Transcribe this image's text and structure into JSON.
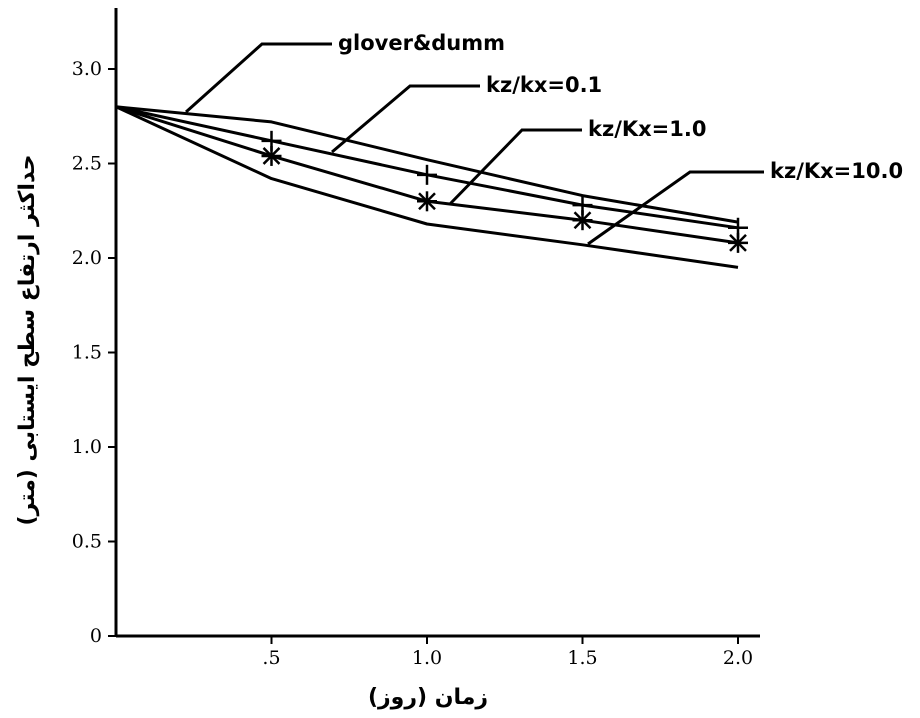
{
  "chart_data": {
    "type": "line",
    "xlabel": "زمان (روز)",
    "ylabel": "حداکثر ارتفاع سطح ایستابی (متر)",
    "x_ticks": [
      ".5",
      "1.0",
      "1.5",
      "2.0"
    ],
    "y_ticks": [
      "0",
      "0.5",
      "1.0",
      "1.5",
      "2.0",
      "2.5",
      "3.0"
    ],
    "xlim": [
      0,
      2.1
    ],
    "ylim": [
      0,
      3.3
    ],
    "grid": false,
    "series": [
      {
        "name": "glover&dumm",
        "marker": "none",
        "points": [
          [
            0,
            2.8
          ],
          [
            0.5,
            2.72
          ],
          [
            1.0,
            2.52
          ],
          [
            1.5,
            2.33
          ],
          [
            2.0,
            2.19
          ]
        ]
      },
      {
        "name": "kz/kx=0.1",
        "marker": "plus",
        "points": [
          [
            0,
            2.8
          ],
          [
            0.5,
            2.62
          ],
          [
            1.0,
            2.44
          ],
          [
            1.5,
            2.28
          ],
          [
            2.0,
            2.16
          ]
        ]
      },
      {
        "name": "kz/Kx=1.0",
        "marker": "star",
        "points": [
          [
            0,
            2.8
          ],
          [
            0.5,
            2.54
          ],
          [
            1.0,
            2.3
          ],
          [
            1.5,
            2.2
          ],
          [
            2.0,
            2.08
          ]
        ]
      },
      {
        "name": "kz/Kx=10.0",
        "marker": "none",
        "points": [
          [
            0,
            2.8
          ],
          [
            0.5,
            2.42
          ],
          [
            1.0,
            2.18
          ],
          [
            1.5,
            2.07
          ],
          [
            2.0,
            1.95
          ]
        ]
      }
    ]
  }
}
